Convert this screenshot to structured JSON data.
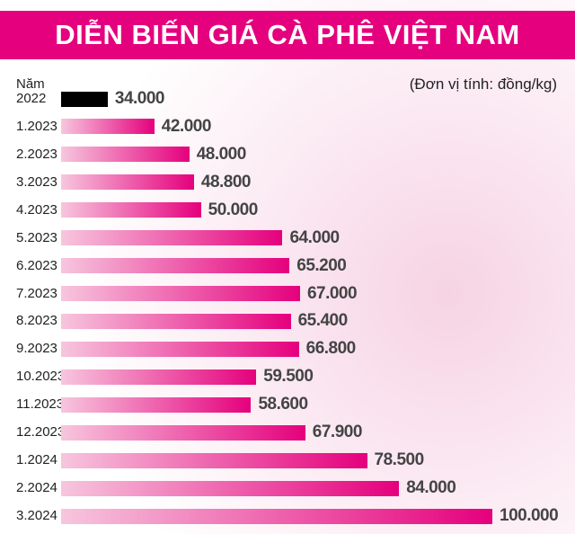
{
  "chart_data": {
    "type": "bar",
    "orientation": "horizontal",
    "title": "DIỄN BIẾN GIÁ CÀ PHÊ VIỆT NAM",
    "subtitle": "(Đơn vị tính: đồng/kg)",
    "categories": [
      "Năm\n2022",
      "1.2023",
      "2.2023",
      "3.2023",
      "4.2023",
      "5.2023",
      "6.2023",
      "7.2023",
      "8.2023",
      "9.2023",
      "10.2023",
      "11.2023",
      "12.2023",
      "1.2024",
      "2.2024",
      "3.2024"
    ],
    "values": [
      34000,
      42000,
      48000,
      48800,
      50000,
      64000,
      65200,
      67000,
      65400,
      66800,
      59500,
      58600,
      67900,
      78500,
      84000,
      100000
    ],
    "value_labels": [
      "34.000",
      "42.000",
      "48.000",
      "48.800",
      "50.000",
      "64.000",
      "65.200",
      "67.000",
      "65.400",
      "66.800",
      "59.500",
      "58.600",
      "67.900",
      "78.500",
      "84.000",
      "100.000"
    ],
    "colors": [
      "#000000",
      "#e5007d",
      "#e5007d",
      "#e5007d",
      "#e5007d",
      "#e5007d",
      "#e5007d",
      "#e5007d",
      "#e5007d",
      "#e5007d",
      "#e5007d",
      "#e5007d",
      "#e5007d",
      "#e5007d",
      "#e5007d",
      "#e5007d"
    ],
    "title_background": "#e5007d",
    "xlim": [
      26000,
      100000
    ]
  }
}
